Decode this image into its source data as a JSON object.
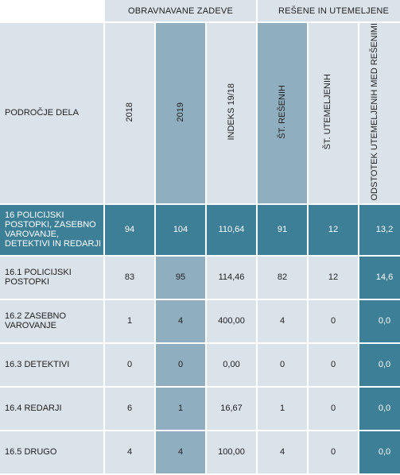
{
  "header": {
    "area_label": "PODROČJE DELA",
    "group1": "OBRAVNAVANE ZADEVE",
    "group2": "REŠENE IN UTEMELJENE",
    "columns": [
      "2018",
      "2019",
      "INDEKS 19/18",
      "ŠT. REŠENIH",
      "ŠT. UTEMELJENIH",
      "ODSTOTEK UTEMELJENIH MED REŠENIMI"
    ]
  },
  "rows": [
    {
      "label": "16 POLICIJSKI POSTOPKI, ZASEBNO VAROVANJE, DETEKTIVI IN REDARJI",
      "values": [
        "94",
        "104",
        "110,64",
        "91",
        "12",
        "13,2"
      ]
    },
    {
      "label": "16.1 POLICIJSKI POSTOPKI",
      "values": [
        "83",
        "95",
        "114,46",
        "82",
        "12",
        "14,6"
      ]
    },
    {
      "label": "16.2 ZASEBNO VAROVANJE",
      "values": [
        "1",
        "4",
        "400,00",
        "4",
        "0",
        "0,0"
      ]
    },
    {
      "label": "16.3 DETEKTIVI",
      "values": [
        "0",
        "0",
        "0,00",
        "0",
        "0",
        "0,0"
      ]
    },
    {
      "label": "16.4 REDARJI",
      "values": [
        "6",
        "1",
        "16,67",
        "1",
        "0",
        "0,0"
      ]
    },
    {
      "label": "16.5 DRUGO",
      "values": [
        "4",
        "4",
        "100,00",
        "4",
        "0",
        "0,0"
      ]
    }
  ],
  "colors": {
    "light": "#dbe3ea",
    "mid": "#8faebf",
    "dark": "#3e7f98"
  }
}
